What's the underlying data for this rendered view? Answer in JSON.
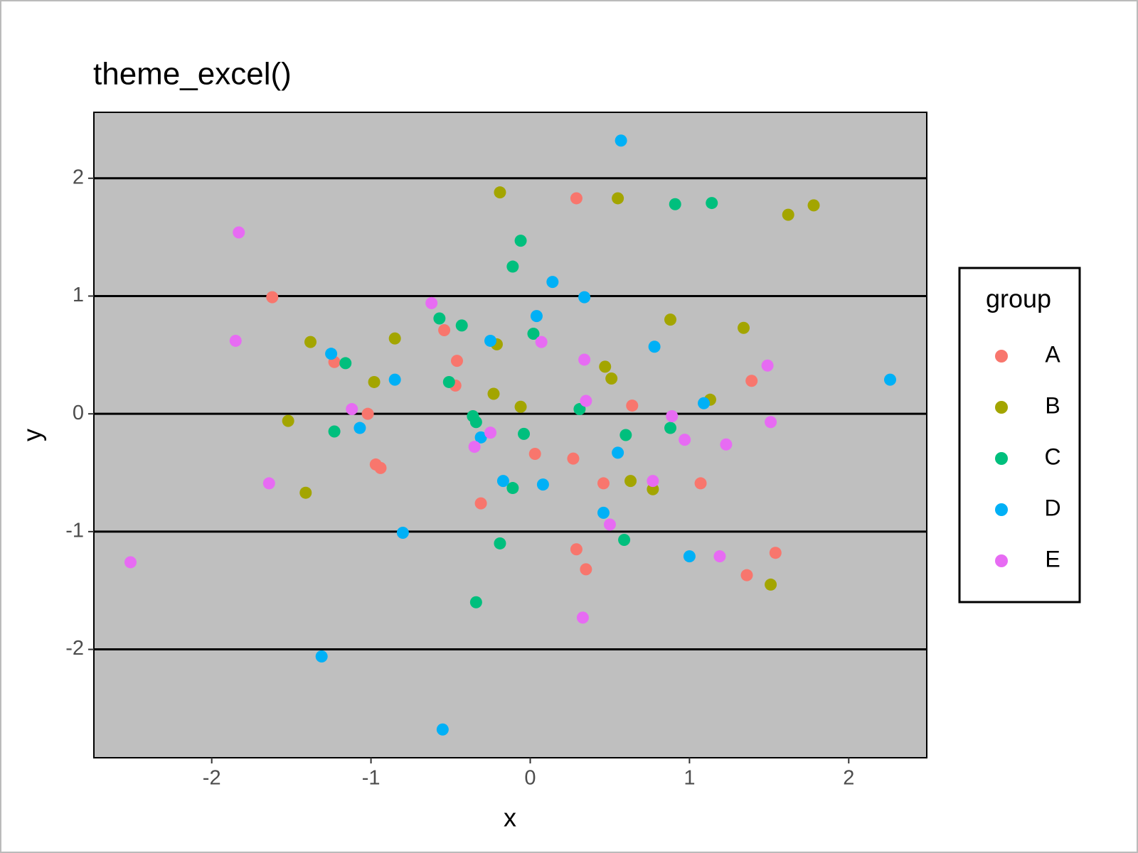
{
  "chart_data": {
    "type": "scatter",
    "title": "theme_excel()",
    "x_label": "x",
    "y_label": "y",
    "legend_title": "group",
    "xlim": [
      -2.74,
      2.49
    ],
    "ylim": [
      -2.92,
      2.56
    ],
    "xticks": [
      -2,
      -1,
      0,
      1,
      2
    ],
    "yticks": [
      -2,
      -1,
      0,
      1,
      2
    ],
    "grid": true,
    "legend_position": "right",
    "series": [
      {
        "name": "A",
        "color": "#F8766D",
        "x": [
          0.29,
          -1.62,
          -0.54,
          -0.46,
          -1.23,
          -0.47,
          -1.02,
          -0.97,
          -0.94,
          0.03,
          0.27,
          0.64,
          0.46,
          1.07,
          1.39,
          -0.31,
          0.29,
          0.35,
          1.36,
          1.54
        ],
        "values": [
          1.83,
          0.99,
          0.71,
          0.45,
          0.44,
          0.24,
          0.0,
          -0.43,
          -0.46,
          -0.34,
          -0.38,
          0.07,
          -0.59,
          -0.59,
          0.28,
          -0.76,
          -1.15,
          -1.32,
          -1.37,
          -1.18
        ]
      },
      {
        "name": "B",
        "color": "#A3A500",
        "x": [
          -0.19,
          0.55,
          1.62,
          1.78,
          0.88,
          1.34,
          -1.38,
          -0.85,
          -0.98,
          -0.21,
          0.47,
          0.51,
          -0.23,
          -0.06,
          1.13,
          -1.52,
          -1.41,
          0.63,
          0.77,
          1.51
        ],
        "values": [
          1.88,
          1.83,
          1.69,
          1.77,
          0.8,
          0.73,
          0.61,
          0.64,
          0.27,
          0.59,
          0.4,
          0.3,
          0.17,
          0.06,
          0.12,
          -0.06,
          -0.67,
          -0.57,
          -0.64,
          -1.45
        ]
      },
      {
        "name": "C",
        "color": "#00BF7D",
        "x": [
          0.91,
          1.14,
          -0.06,
          -0.11,
          -0.57,
          -0.43,
          0.02,
          -1.16,
          -0.51,
          -0.36,
          -0.34,
          0.31,
          -1.23,
          -0.04,
          0.6,
          0.88,
          -0.11,
          -0.19,
          0.59,
          -0.34
        ],
        "values": [
          1.78,
          1.79,
          1.47,
          1.25,
          0.81,
          0.75,
          0.68,
          0.43,
          0.27,
          -0.02,
          -0.07,
          0.04,
          -0.15,
          -0.17,
          -0.18,
          -0.12,
          -0.63,
          -1.1,
          -1.07,
          -1.6
        ]
      },
      {
        "name": "D",
        "color": "#00B0F6",
        "x": [
          0.57,
          0.14,
          0.34,
          0.04,
          -0.25,
          0.78,
          -1.25,
          -0.85,
          2.26,
          1.09,
          -1.07,
          -0.31,
          0.55,
          -0.17,
          0.08,
          0.46,
          -0.8,
          1.0,
          -1.31,
          -0.55
        ],
        "values": [
          2.32,
          1.12,
          0.99,
          0.83,
          0.62,
          0.57,
          0.51,
          0.29,
          0.29,
          0.09,
          -0.12,
          -0.2,
          -0.33,
          -0.57,
          -0.6,
          -0.84,
          -1.01,
          -1.21,
          -2.06,
          -2.68
        ]
      },
      {
        "name": "E",
        "color": "#E76BF3",
        "x": [
          -1.83,
          -0.62,
          -1.85,
          0.07,
          0.34,
          1.49,
          -1.12,
          0.35,
          0.89,
          1.51,
          -0.25,
          0.97,
          -0.35,
          1.23,
          -1.64,
          0.77,
          0.5,
          -2.51,
          1.19,
          0.33
        ],
        "values": [
          1.54,
          0.94,
          0.62,
          0.61,
          0.46,
          0.41,
          0.04,
          0.11,
          -0.02,
          -0.07,
          -0.16,
          -0.22,
          -0.28,
          -0.26,
          -0.59,
          -0.57,
          -0.94,
          -1.26,
          -1.21,
          -1.73
        ]
      }
    ]
  }
}
